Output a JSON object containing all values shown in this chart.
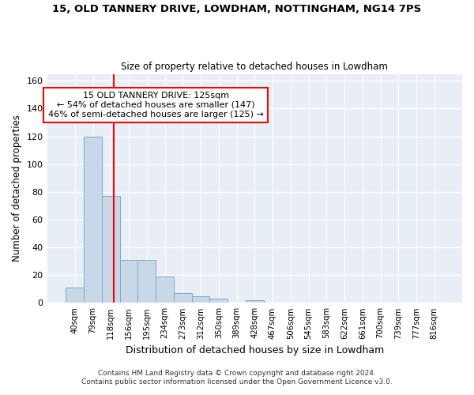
{
  "title1": "15, OLD TANNERY DRIVE, LOWDHAM, NOTTINGHAM, NG14 7PS",
  "title2": "Size of property relative to detached houses in Lowdham",
  "xlabel": "Distribution of detached houses by size in Lowdham",
  "ylabel": "Number of detached properties",
  "bar_color": "#c8d8e8",
  "bar_edge_color": "#7aaac8",
  "background_color": "#e8eef5",
  "grid_color": "#ffffff",
  "categories": [
    "40sqm",
    "79sqm",
    "118sqm",
    "156sqm",
    "195sqm",
    "234sqm",
    "273sqm",
    "312sqm",
    "350sqm",
    "389sqm",
    "428sqm",
    "467sqm",
    "506sqm",
    "545sqm",
    "583sqm",
    "622sqm",
    "661sqm",
    "700sqm",
    "739sqm",
    "777sqm",
    "816sqm"
  ],
  "values": [
    11,
    120,
    77,
    31,
    31,
    19,
    7,
    5,
    3,
    0,
    2,
    0,
    0,
    0,
    0,
    0,
    0,
    0,
    0,
    0,
    0
  ],
  "ylim": [
    0,
    165
  ],
  "yticks": [
    0,
    20,
    40,
    60,
    80,
    100,
    120,
    140,
    160
  ],
  "property_label": "15 OLD TANNERY DRIVE: 125sqm",
  "annotation_line1": "← 54% of detached houses are smaller (147)",
  "annotation_line2": "46% of semi-detached houses are larger (125) →",
  "vline_x": 2.18,
  "footnote1": "Contains HM Land Registry data © Crown copyright and database right 2024.",
  "footnote2": "Contains public sector information licensed under the Open Government Licence v3.0."
}
